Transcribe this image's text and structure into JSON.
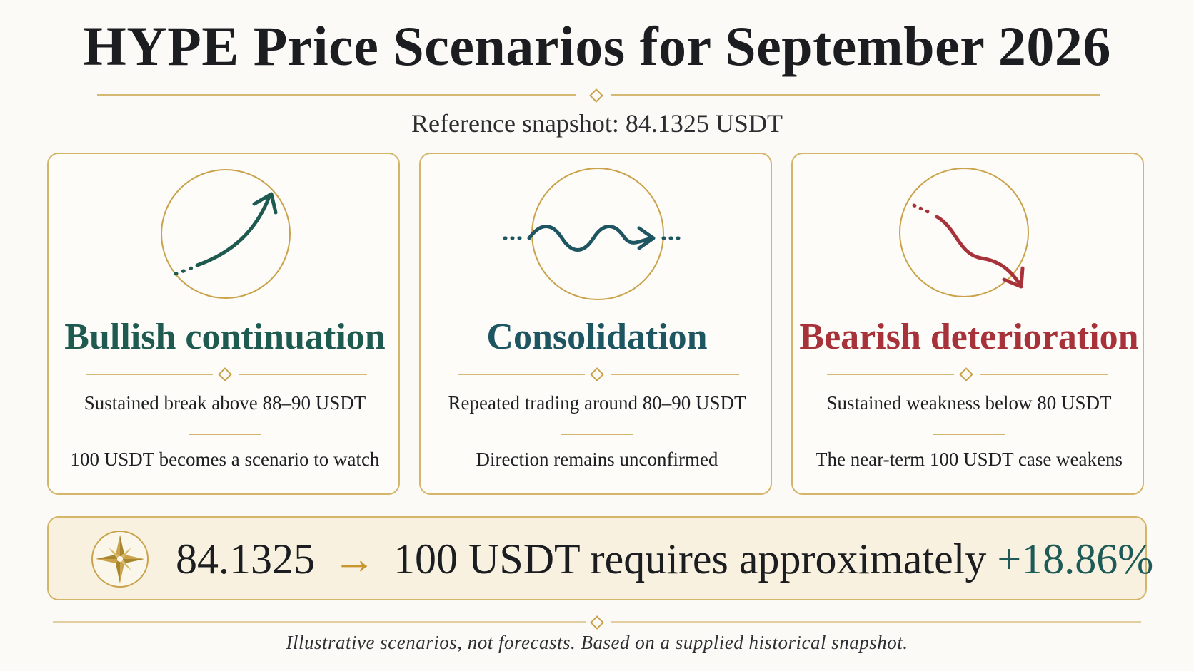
{
  "title": "HYPE Price Scenarios for September 2026",
  "subtitle": "Reference snapshot: 84.1325 USDT",
  "colors": {
    "gold": "#c9a24a",
    "bullish": "#1e5a50",
    "consolidation": "#1d5561",
    "bearish": "#a8323a"
  },
  "scenarios": [
    {
      "icon": "upward-curve-arrow-icon",
      "heading": "Bullish continuation",
      "condition": "Sustained break above 88–90 USDT",
      "implication": "100 USDT becomes a scenario to watch"
    },
    {
      "icon": "sideways-wave-arrow-icon",
      "heading": "Consolidation",
      "condition": "Repeated trading around 80–90 USDT",
      "implication": "Direction remains unconfirmed"
    },
    {
      "icon": "downward-curve-arrow-icon",
      "heading": "Bearish deterioration",
      "condition": "Sustained weakness below 80 USDT",
      "implication": "The near-term 100 USDT case weakens"
    }
  ],
  "banner": {
    "icon": "compass-star-icon",
    "from": "84.1325",
    "arrow": "→",
    "to": "100 USDT requires approximately",
    "change": "+18.86%"
  },
  "footnote": "Illustrative scenarios, not forecasts. Based on a supplied historical snapshot."
}
